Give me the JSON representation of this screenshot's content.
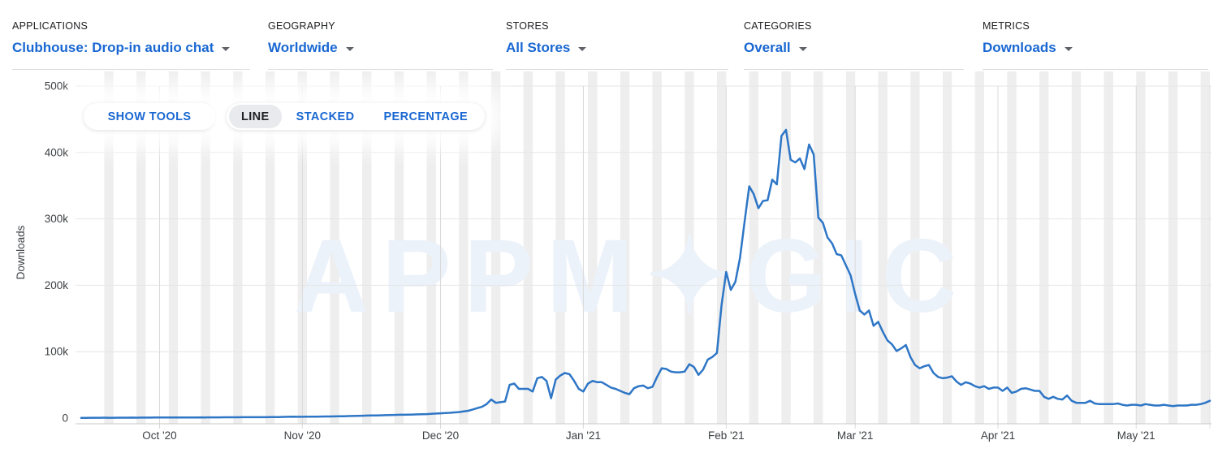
{
  "filters": [
    {
      "label": "APPLICATIONS",
      "value": "Clubhouse: Drop-in audio chat"
    },
    {
      "label": "GEOGRAPHY",
      "value": "Worldwide"
    },
    {
      "label": "STORES",
      "value": "All Stores"
    },
    {
      "label": "CATEGORIES",
      "value": "Overall"
    },
    {
      "label": "METRICS",
      "value": "Downloads"
    }
  ],
  "toolbar": {
    "show_tools_label": "SHOW TOOLS",
    "chart_types": [
      "LINE",
      "STACKED",
      "PERCENTAGE"
    ],
    "active_type": "LINE"
  },
  "watermark": "APPMAGIC",
  "colors": {
    "accent_blue": "#1967d2",
    "line": "#2e76c6",
    "weekend_band": "#eeeeee",
    "grid": "#e6e6e6",
    "month_line": "#d9d9d9",
    "axis_line": "#c9c9c9",
    "axis_text": "#3c4043",
    "watermark": "#ecf2fa",
    "active_chip_bg": "#e8eaed"
  },
  "chart_data": {
    "type": "line",
    "metric": "Downloads",
    "app": "Clubhouse: Drop-in audio chat",
    "geography": "Worldwide",
    "ylabel": "Downloads",
    "values_unit": "thousands of downloads per day",
    "start_date": "2020-09-14",
    "frequency": "daily",
    "grid": true,
    "legend": false,
    "background": "weekend-striped",
    "ylim_thousands": [
      0,
      500
    ],
    "y_tick_labels": [
      "0",
      "100k",
      "200k",
      "300k",
      "400k",
      "500k"
    ],
    "x_ticks": [
      {
        "index": 17,
        "label": "Oct '20"
      },
      {
        "index": 48,
        "label": "Nov '20"
      },
      {
        "index": 78,
        "label": "Dec '20"
      },
      {
        "index": 109,
        "label": "Jan '21"
      },
      {
        "index": 140,
        "label": "Feb '21"
      },
      {
        "index": 168,
        "label": "Mar '21"
      },
      {
        "index": 199,
        "label": "Apr '21"
      },
      {
        "index": 229,
        "label": "May '21"
      }
    ],
    "series": [
      {
        "name": "Downloads",
        "values": [
          0.4,
          0.4,
          0.5,
          0.5,
          0.5,
          0.6,
          0.5,
          0.5,
          0.6,
          0.6,
          0.6,
          0.7,
          0.6,
          0.7,
          0.7,
          0.7,
          0.8,
          0.8,
          0.8,
          0.9,
          0.9,
          0.9,
          1,
          1,
          1,
          1,
          1.1,
          1,
          1.1,
          1.1,
          1.1,
          1.2,
          1.2,
          1.2,
          1.2,
          1.3,
          1.3,
          1.3,
          1.4,
          1.4,
          1.4,
          1.5,
          1.5,
          1.6,
          1.8,
          2,
          2.2,
          2,
          2,
          2.1,
          2.2,
          2.2,
          2.3,
          2.4,
          2.5,
          2.6,
          2.7,
          2.8,
          3,
          3.2,
          3.4,
          3.6,
          3.8,
          4,
          4,
          4.2,
          4.4,
          4.6,
          4.8,
          5,
          5,
          5.2,
          5.4,
          5.6,
          5.8,
          6,
          6.4,
          6.8,
          7.2,
          7.6,
          8,
          8.5,
          9,
          10,
          11,
          13,
          15,
          17,
          21,
          28,
          23,
          24,
          25,
          50,
          52,
          44,
          44,
          44,
          40,
          60,
          62,
          56,
          30,
          58,
          64,
          68,
          66,
          56,
          44,
          40,
          52,
          56,
          54,
          54,
          50,
          46,
          44,
          41,
          38,
          36,
          45,
          48,
          49,
          45,
          47,
          62,
          75,
          74,
          70,
          69,
          69,
          70,
          81,
          77,
          65,
          73,
          88,
          92,
          98,
          170,
          220,
          193,
          205,
          241,
          296,
          349,
          337,
          316,
          327,
          328,
          359,
          352,
          425,
          434,
          389,
          385,
          391,
          375,
          412,
          397,
          302,
          294,
          272,
          263,
          247,
          245,
          230,
          215,
          187,
          162,
          156,
          162,
          139,
          145,
          130,
          117,
          111,
          101,
          105,
          110,
          92,
          80,
          75,
          78,
          80,
          68,
          62,
          60,
          61,
          63,
          55,
          50,
          54,
          52,
          48,
          46,
          48,
          44,
          46,
          46,
          41,
          46,
          38,
          40,
          44,
          45,
          43,
          41,
          41,
          32,
          29,
          32,
          29,
          28,
          34,
          26,
          23,
          23,
          23,
          26,
          22,
          21,
          21,
          21,
          21,
          22,
          20,
          19,
          20,
          20,
          19,
          21,
          20,
          19,
          19,
          20,
          19,
          18,
          19,
          19,
          19,
          20,
          20,
          21,
          23,
          26
        ]
      }
    ]
  }
}
